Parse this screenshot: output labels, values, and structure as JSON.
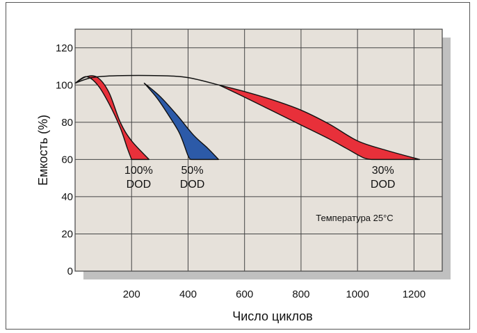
{
  "chart_data": {
    "type": "area",
    "xlabel": "Число циклов",
    "ylabel": "Емкость (%)",
    "xlim": [
      0,
      1300
    ],
    "ylim": [
      0,
      130
    ],
    "x_ticks": [
      200,
      400,
      600,
      800,
      1000,
      1200
    ],
    "y_ticks": [
      0,
      20,
      40,
      60,
      80,
      100,
      120
    ],
    "grid": true,
    "annotation": "Температура 25°С",
    "series": [
      {
        "name": "100% DOD",
        "label_lines": [
          "100%",
          "DOD"
        ],
        "color": "#e8303a",
        "upper": [
          [
            0,
            101
          ],
          [
            40,
            104.5
          ],
          [
            80,
            104
          ],
          [
            120,
            96
          ],
          [
            160,
            80
          ],
          [
            200,
            70
          ],
          [
            262,
            60
          ]
        ],
        "lower": [
          [
            0,
            101
          ],
          [
            40,
            104.5
          ],
          [
            80,
            100
          ],
          [
            120,
            90
          ],
          [
            160,
            77
          ],
          [
            185,
            66
          ],
          [
            200,
            60
          ]
        ]
      },
      {
        "name": "50% DOD",
        "label_lines": [
          "50%",
          "DOD"
        ],
        "color": "#2c5aa8",
        "upper": [
          [
            245,
            101
          ],
          [
            300,
            94
          ],
          [
            360,
            84
          ],
          [
            420,
            73
          ],
          [
            470,
            66
          ],
          [
            508,
            60
          ]
        ],
        "lower": [
          [
            245,
            101
          ],
          [
            290,
            93
          ],
          [
            330,
            84
          ],
          [
            370,
            74
          ],
          [
            400,
            62
          ],
          [
            410,
            60
          ]
        ]
      },
      {
        "name": "30% DOD",
        "label_lines": [
          "30%",
          "DOD"
        ],
        "color": "#e8303a",
        "upper": [
          [
            510,
            100
          ],
          [
            600,
            96.5
          ],
          [
            700,
            92
          ],
          [
            800,
            86.5
          ],
          [
            900,
            79
          ],
          [
            1000,
            70
          ],
          [
            1100,
            65
          ],
          [
            1220,
            60
          ]
        ],
        "lower": [
          [
            510,
            100
          ],
          [
            600,
            93.5
          ],
          [
            700,
            86
          ],
          [
            800,
            78.5
          ],
          [
            900,
            71
          ],
          [
            960,
            66
          ],
          [
            1020,
            61
          ],
          [
            1050,
            60
          ]
        ]
      }
    ],
    "envelope": [
      [
        0,
        101
      ],
      [
        60,
        104
      ],
      [
        150,
        105
      ],
      [
        300,
        105
      ],
      [
        400,
        104
      ],
      [
        510,
        100
      ]
    ]
  },
  "colors": {
    "plot_background": "#e6e1da",
    "shadow": "#c0c0c0",
    "grid": "#444444"
  }
}
